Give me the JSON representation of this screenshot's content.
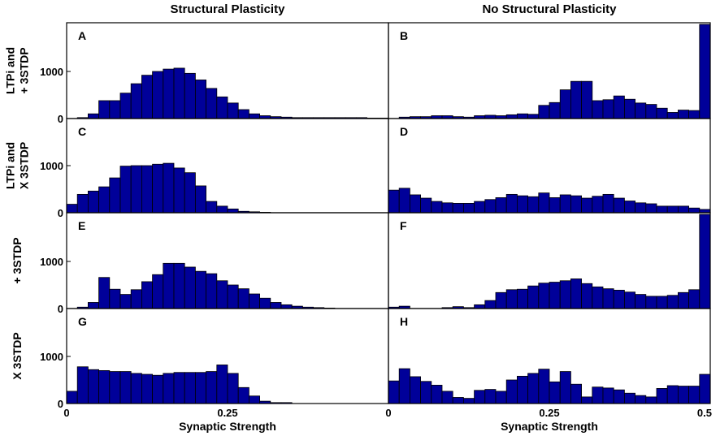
{
  "figure": {
    "col_titles": [
      "Structural Plasticity",
      "No Structural Plasticity"
    ],
    "row_labels": [
      [
        "LTPi and",
        "+ 3STDP"
      ],
      [
        "LTPi and",
        "X 3STDP"
      ],
      [
        "+ 3STDP"
      ],
      [
        "X 3STDP"
      ]
    ],
    "bar_color": "#000099"
  },
  "chart_data": {
    "type": "bar",
    "xlabel": "Synaptic Strength",
    "ylabel": "",
    "xlim": [
      0,
      0.5
    ],
    "ylim": [
      0,
      2000
    ],
    "xticks": [
      "0",
      "0.25",
      "0.5"
    ],
    "yticks": [
      "0",
      "1000"
    ],
    "bin_count": 30,
    "panels": [
      {
        "label": "A",
        "values": [
          0,
          20,
          100,
          380,
          380,
          540,
          740,
          920,
          1000,
          1050,
          1070,
          960,
          820,
          640,
          460,
          330,
          190,
          100,
          60,
          40,
          30,
          20,
          20,
          20,
          20,
          20,
          20,
          20,
          10,
          10
        ]
      },
      {
        "label": "B",
        "values": [
          0,
          30,
          40,
          40,
          60,
          60,
          40,
          30,
          60,
          70,
          60,
          80,
          100,
          90,
          280,
          340,
          610,
          790,
          790,
          380,
          400,
          480,
          410,
          330,
          300,
          220,
          130,
          180,
          170,
          2000
        ]
      },
      {
        "label": "C",
        "values": [
          180,
          390,
          460,
          550,
          740,
          990,
          1000,
          1000,
          1030,
          1050,
          950,
          850,
          570,
          240,
          140,
          80,
          30,
          20,
          10,
          0,
          0,
          0,
          0,
          0,
          0,
          0,
          0,
          0,
          0,
          0
        ]
      },
      {
        "label": "D",
        "values": [
          480,
          520,
          380,
          310,
          240,
          210,
          200,
          200,
          240,
          280,
          320,
          390,
          360,
          340,
          420,
          320,
          380,
          360,
          310,
          350,
          390,
          310,
          250,
          210,
          190,
          140,
          140,
          140,
          100,
          70
        ]
      },
      {
        "label": "E",
        "values": [
          0,
          30,
          130,
          660,
          410,
          300,
          400,
          570,
          720,
          960,
          960,
          880,
          790,
          740,
          590,
          500,
          420,
          310,
          220,
          130,
          80,
          50,
          30,
          20,
          10,
          0,
          0,
          0,
          0,
          0
        ]
      },
      {
        "label": "F",
        "values": [
          30,
          50,
          0,
          0,
          0,
          20,
          40,
          20,
          80,
          170,
          340,
          400,
          410,
          480,
          540,
          560,
          590,
          630,
          530,
          460,
          420,
          390,
          350,
          300,
          260,
          260,
          280,
          340,
          400,
          2000
        ]
      },
      {
        "label": "G",
        "values": [
          260,
          780,
          720,
          700,
          680,
          680,
          640,
          620,
          600,
          640,
          660,
          660,
          660,
          680,
          820,
          640,
          340,
          160,
          50,
          20,
          20,
          0,
          0,
          0,
          0,
          0,
          0,
          0,
          0,
          0
        ]
      },
      {
        "label": "H",
        "values": [
          480,
          740,
          570,
          470,
          390,
          260,
          130,
          110,
          280,
          300,
          260,
          500,
          580,
          640,
          730,
          460,
          680,
          410,
          140,
          350,
          330,
          290,
          220,
          170,
          140,
          320,
          380,
          370,
          370,
          620
        ]
      }
    ]
  }
}
